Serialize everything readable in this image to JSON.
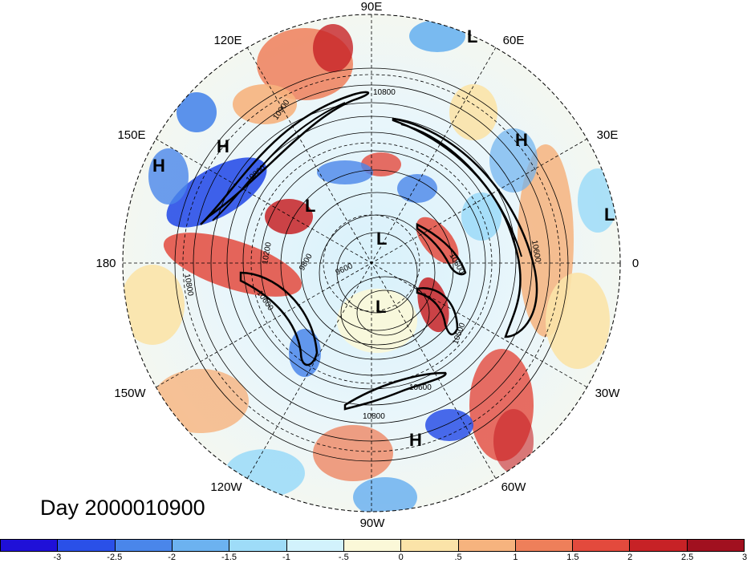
{
  "map": {
    "projection": "north-polar-stereographic",
    "longitude_labels": [
      "90E",
      "60E",
      "30E",
      "0",
      "30W",
      "60W",
      "90W",
      "120W",
      "150W",
      "180",
      "150E",
      "120E"
    ],
    "contour_labels": [
      "10800",
      "10900",
      "10600",
      "10800",
      "10600",
      "10500",
      "9600",
      "9800",
      "10200",
      "10800",
      "10600",
      "10600",
      "10800"
    ],
    "pressure_centers": [
      {
        "label": "L"
      },
      {
        "label": "H"
      },
      {
        "label": "H"
      },
      {
        "label": "H"
      },
      {
        "label": "L"
      },
      {
        "label": "L"
      },
      {
        "label": "L"
      },
      {
        "label": "L"
      },
      {
        "label": "H"
      }
    ]
  },
  "title": "Day 2000010900",
  "colorbar": {
    "colors": [
      "#1f10d8",
      "#2a50e8",
      "#4a86ea",
      "#6cb2f0",
      "#9edcf8",
      "#d2f2fc",
      "#fbf8d8",
      "#fbe3a8",
      "#f6b37e",
      "#ee7f5a",
      "#e34a3d",
      "#c72226",
      "#a1101f"
    ],
    "tick_labels": [
      "-3",
      "-2.5",
      "-2",
      "-1.5",
      "-1",
      "-.5",
      "0",
      ".5",
      "1",
      "1.5",
      "2",
      "2.5",
      "3"
    ]
  }
}
